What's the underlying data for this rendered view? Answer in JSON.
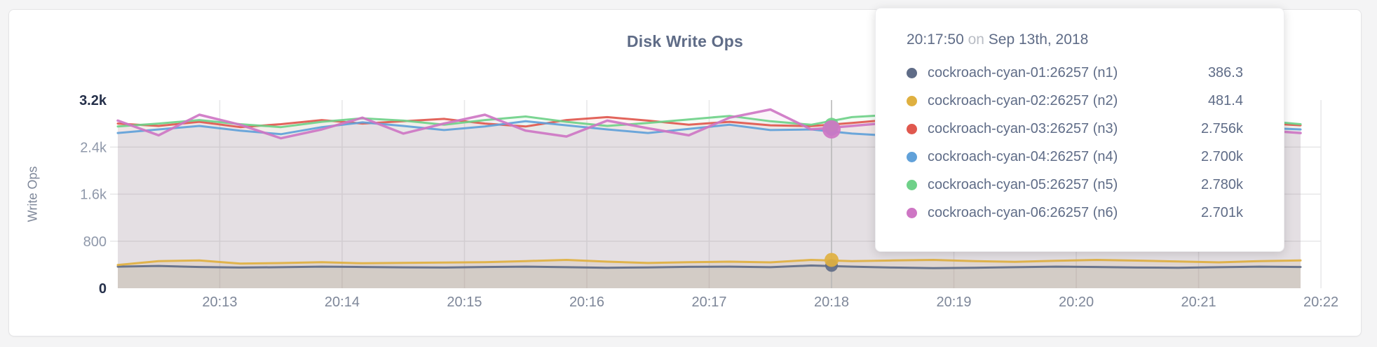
{
  "chart": {
    "title": "Disk Write Ops",
    "ylabel": "Write Ops"
  },
  "tooltip": {
    "time": "20:17:50",
    "connector": "on",
    "date": "Sep 13th, 2018",
    "rows": [
      {
        "name": "cockroach-cyan-01:26257 (n1)",
        "value": "386.3",
        "color": "#5f6c87"
      },
      {
        "name": "cockroach-cyan-02:26257 (n2)",
        "value": "481.4",
        "color": "#dfb040"
      },
      {
        "name": "cockroach-cyan-03:26257 (n3)",
        "value": "2.756k",
        "color": "#e0584e"
      },
      {
        "name": "cockroach-cyan-04:26257 (n4)",
        "value": "2.700k",
        "color": "#61a1d9"
      },
      {
        "name": "cockroach-cyan-05:26257 (n5)",
        "value": "2.780k",
        "color": "#6fd189"
      },
      {
        "name": "cockroach-cyan-06:26257 (n6)",
        "value": "2.701k",
        "color": "#ce76c4"
      }
    ]
  },
  "chart_data": {
    "type": "line",
    "title": "Disk Write Ops",
    "xlabel": "",
    "ylabel": "Write Ops",
    "ylim": [
      0,
      3200
    ],
    "grid": true,
    "yticks": [
      {
        "label": "0",
        "value": 0,
        "emphasized": true
      },
      {
        "label": "800",
        "value": 800,
        "emphasized": false
      },
      {
        "label": "1.6k",
        "value": 1600,
        "emphasized": false
      },
      {
        "label": "2.4k",
        "value": 2400,
        "emphasized": false
      },
      {
        "label": "3.2k",
        "value": 3200,
        "emphasized": true
      }
    ],
    "xticks": [
      "20:13",
      "20:14",
      "20:15",
      "20:16",
      "20:17",
      "20:18",
      "20:19",
      "20:20",
      "20:21",
      "20:22"
    ],
    "x_time_start": "20:12:10",
    "x_time_end": "20:21:50",
    "x_step_seconds": 20,
    "hover": {
      "time": "20:17:50",
      "date": "Sep 13th, 2018",
      "index": 17,
      "snap_tick": "20:18",
      "values": [
        386.3,
        481.4,
        2756,
        2700,
        2780,
        2701
      ]
    },
    "series": [
      {
        "name": "cockroach-cyan-01:26257 (n1)",
        "color": "#5f6c87",
        "values": [
          368,
          380,
          362,
          352,
          358,
          368,
          362,
          356,
          352,
          362,
          368,
          358,
          348,
          354,
          364,
          368,
          358,
          386.3,
          368,
          352,
          342,
          348,
          358,
          368,
          362,
          352,
          348,
          358,
          368,
          362
        ]
      },
      {
        "name": "cockroach-cyan-02:26257 (n2)",
        "color": "#dfb040",
        "values": [
          395,
          462,
          472,
          420,
          428,
          442,
          425,
          432,
          436,
          442,
          462,
          482,
          452,
          430,
          442,
          452,
          440,
          481.4,
          462,
          472,
          482,
          462,
          450,
          466,
          482,
          470,
          455,
          440,
          462,
          472
        ]
      },
      {
        "name": "cockroach-cyan-03:26257 (n3)",
        "color": "#e0584e",
        "values": [
          2800,
          2760,
          2830,
          2740,
          2790,
          2860,
          2800,
          2840,
          2880,
          2800,
          2750,
          2860,
          2910,
          2850,
          2780,
          2830,
          2770,
          2756,
          2810,
          2870,
          2790,
          2730,
          2800,
          2870,
          2800,
          2750,
          2830,
          2790,
          2810,
          2770
        ]
      },
      {
        "name": "cockroach-cyan-04:26257 (n4)",
        "color": "#61a1d9",
        "values": [
          2640,
          2700,
          2760,
          2680,
          2620,
          2740,
          2820,
          2760,
          2690,
          2750,
          2840,
          2770,
          2700,
          2640,
          2710,
          2780,
          2690,
          2700,
          2630,
          2590,
          2700,
          2790,
          2730,
          2650,
          2710,
          2770,
          2700,
          2660,
          2730,
          2700
        ]
      },
      {
        "name": "cockroach-cyan-05:26257 (n5)",
        "color": "#6fd189",
        "values": [
          2750,
          2800,
          2860,
          2790,
          2740,
          2830,
          2890,
          2850,
          2780,
          2860,
          2920,
          2830,
          2760,
          2810,
          2870,
          2930,
          2840,
          2780,
          2910,
          2950,
          2860,
          2780,
          2830,
          2890,
          2810,
          2760,
          2860,
          2920,
          2850,
          2790
        ]
      },
      {
        "name": "cockroach-cyan-06:26257 (n6)",
        "color": "#ce76c4",
        "values": [
          2850,
          2600,
          2950,
          2780,
          2550,
          2700,
          2900,
          2630,
          2800,
          2950,
          2680,
          2580,
          2850,
          2720,
          2600,
          2900,
          3040,
          2701,
          2760,
          2820,
          2640,
          2580,
          2760,
          2920,
          2800,
          2680,
          2580,
          2780,
          2690,
          2640
        ]
      }
    ]
  }
}
